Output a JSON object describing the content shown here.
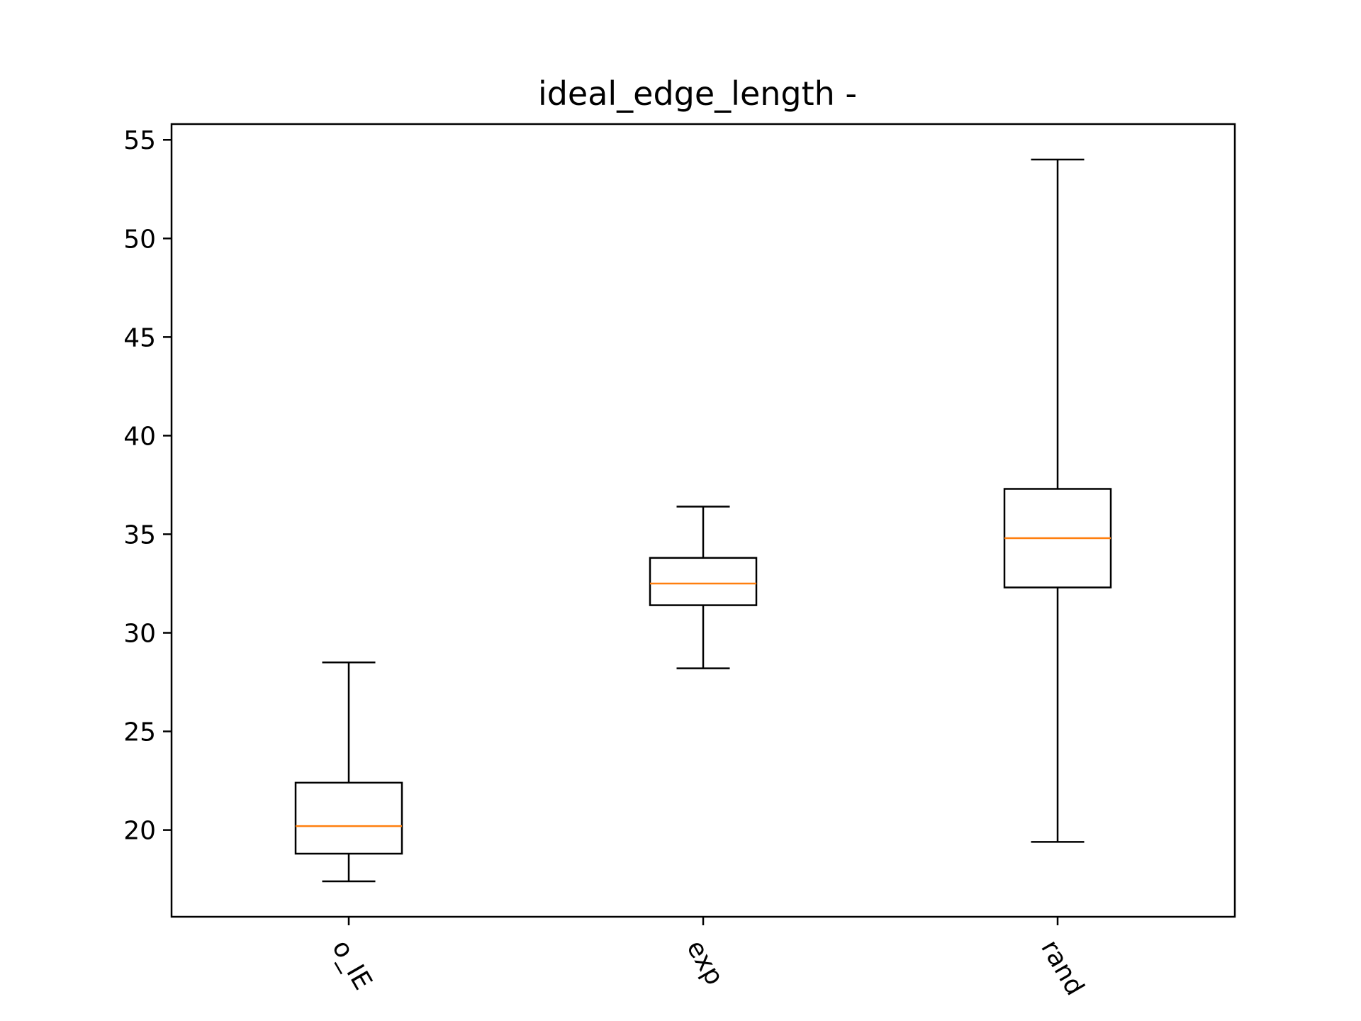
{
  "chart_data": {
    "type": "box",
    "title": "ideal_edge_length -",
    "xlabel": "",
    "ylabel": "",
    "ylim": [
      15.6,
      55.8
    ],
    "yticks": [
      20,
      25,
      30,
      35,
      40,
      45,
      50,
      55
    ],
    "categories": [
      "o_IE",
      "exp",
      "rand"
    ],
    "boxes": [
      {
        "category": "o_IE",
        "whisker_low": 17.4,
        "q1": 18.8,
        "median": 20.2,
        "q3": 22.4,
        "whisker_high": 28.5
      },
      {
        "category": "exp",
        "whisker_low": 28.2,
        "q1": 31.4,
        "median": 32.5,
        "q3": 33.8,
        "whisker_high": 36.4
      },
      {
        "category": "rand",
        "whisker_low": 19.4,
        "q1": 32.3,
        "median": 34.8,
        "q3": 37.3,
        "whisker_high": 54.0
      }
    ],
    "grid": false,
    "colors": {
      "box": "#000000",
      "median": "#ff7f0e"
    }
  }
}
